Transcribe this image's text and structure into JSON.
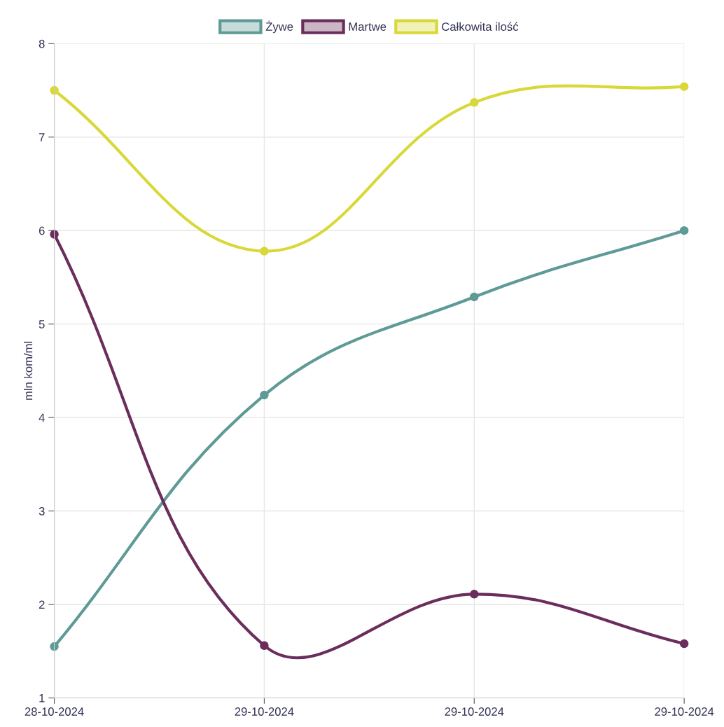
{
  "chart_data": {
    "type": "line",
    "ylabel": "mln kom/ml",
    "categories": [
      "28-10-2024",
      "29-10-2024",
      "29-10-2024",
      "29-10-2024"
    ],
    "series": [
      {
        "name": "Żywe",
        "color": "#5e9a96",
        "values": [
          1.55,
          4.24,
          5.29,
          6.0
        ]
      },
      {
        "name": "Martwe",
        "color": "#6b2d5c",
        "values": [
          5.96,
          1.56,
          2.11,
          1.58
        ]
      },
      {
        "name": "Całkowita ilość",
        "color": "#d8d838",
        "values": [
          7.5,
          5.78,
          7.37,
          7.54
        ]
      }
    ],
    "ylim": [
      1,
      8
    ],
    "yticks": [
      1,
      2,
      3,
      4,
      5,
      6,
      7,
      8
    ],
    "grid": true,
    "legend": "top",
    "marker": "circle",
    "line_style": "solid"
  }
}
